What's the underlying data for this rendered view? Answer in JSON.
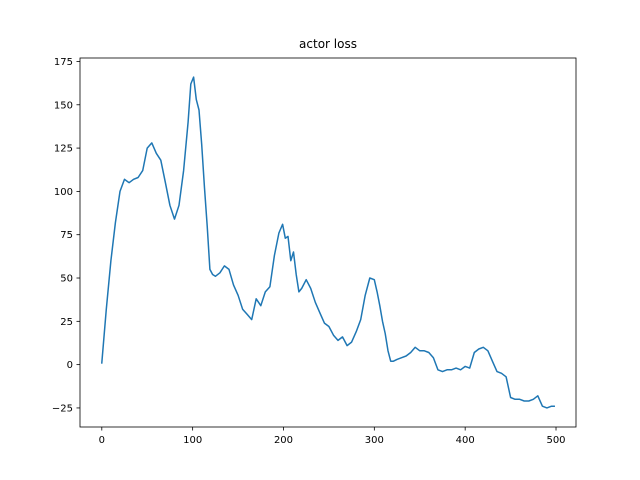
{
  "chart_data": {
    "type": "line",
    "title": "actor loss",
    "xlabel": "",
    "ylabel": "",
    "xlim": [
      -24,
      522
    ],
    "ylim": [
      -36,
      177
    ],
    "x_ticks": [
      0,
      100,
      200,
      300,
      400,
      500
    ],
    "y_ticks": [
      -25,
      0,
      25,
      50,
      75,
      100,
      125,
      150,
      175
    ],
    "x_tick_labels": [
      "0",
      "100",
      "200",
      "300",
      "400",
      "500"
    ],
    "y_tick_labels": [
      "−25",
      "0",
      "25",
      "50",
      "75",
      "100",
      "125",
      "150",
      "175"
    ],
    "grid": false,
    "series": [
      {
        "color": "#1f77b4",
        "x": [
          0,
          5,
          10,
          15,
          20,
          25,
          30,
          35,
          40,
          45,
          50,
          55,
          60,
          65,
          70,
          75,
          80,
          85,
          90,
          95,
          98,
          101,
          104,
          107,
          110,
          113,
          116,
          119,
          122,
          125,
          130,
          135,
          140,
          145,
          150,
          155,
          160,
          165,
          170,
          175,
          180,
          185,
          190,
          195,
          199,
          202,
          205,
          208,
          211,
          214,
          217,
          220,
          225,
          230,
          235,
          240,
          245,
          250,
          255,
          260,
          265,
          270,
          275,
          280,
          285,
          290,
          295,
          300,
          303,
          306,
          309,
          312,
          315,
          318,
          321,
          325,
          330,
          335,
          340,
          345,
          350,
          355,
          360,
          365,
          370,
          375,
          380,
          385,
          390,
          395,
          400,
          405,
          410,
          415,
          420,
          425,
          430,
          435,
          440,
          445,
          450,
          455,
          460,
          465,
          470,
          475,
          480,
          485,
          490,
          495,
          498
        ],
        "y": [
          1,
          32,
          60,
          82,
          100,
          107,
          105,
          107,
          108,
          112,
          125,
          128,
          122,
          118,
          105,
          92,
          84,
          92,
          112,
          140,
          162,
          166,
          153,
          147,
          127,
          102,
          80,
          55,
          52,
          51,
          53,
          57,
          55,
          46,
          40,
          32,
          29,
          26,
          38,
          34,
          42,
          45,
          63,
          76,
          81,
          73,
          74,
          60,
          65,
          52,
          42,
          44,
          49,
          44,
          36,
          30,
          24,
          22,
          17,
          14,
          16,
          11,
          13,
          19,
          26,
          40,
          50,
          49,
          42,
          34,
          25,
          18,
          8,
          2,
          2,
          3,
          4,
          5,
          7,
          10,
          8,
          8,
          7,
          4,
          -3,
          -4,
          -3,
          -3,
          -2,
          -3,
          -1,
          -2,
          7,
          9,
          10,
          8,
          2,
          -4,
          -5,
          -7,
          -19,
          -20,
          -20,
          -21,
          -21,
          -20,
          -18,
          -24,
          -25,
          -24,
          -24
        ]
      }
    ]
  }
}
